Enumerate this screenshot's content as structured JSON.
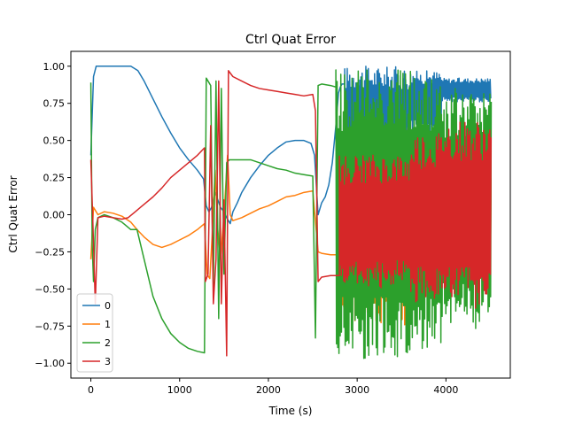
{
  "chart_data": {
    "type": "line",
    "title": "Ctrl Quat Error",
    "xlabel": "Time (s)",
    "ylabel": "Ctrl Quat Error",
    "xlim": [
      -225,
      4725
    ],
    "ylim": [
      -1.1,
      1.1
    ],
    "xticks": [
      0,
      1000,
      2000,
      3000,
      4000
    ],
    "xtick_labels": [
      "0",
      "1000",
      "2000",
      "3000",
      "4000"
    ],
    "yticks": [
      -1.0,
      -0.75,
      -0.5,
      -0.25,
      0.0,
      0.25,
      0.5,
      0.75,
      1.0
    ],
    "ytick_labels": [
      "−1.00",
      "−0.75",
      "−0.50",
      "−0.25",
      "0.00",
      "0.25",
      "0.50",
      "0.75",
      "1.00"
    ],
    "grid": false,
    "legend_position": "lower-left",
    "series": [
      {
        "name": "0",
        "color": "#1f77b4",
        "points": [
          [
            0,
            0.4
          ],
          [
            30,
            0.93
          ],
          [
            60,
            1.0
          ],
          [
            450,
            1.0
          ],
          [
            530,
            0.97
          ],
          [
            600,
            0.9
          ],
          [
            700,
            0.78
          ],
          [
            800,
            0.66
          ],
          [
            900,
            0.55
          ],
          [
            1000,
            0.45
          ],
          [
            1100,
            0.37
          ],
          [
            1200,
            0.3
          ],
          [
            1270,
            0.24
          ],
          [
            1300,
            0.06
          ],
          [
            1330,
            0.02
          ],
          [
            1360,
            0.05
          ],
          [
            1400,
            0.15
          ],
          [
            1430,
            0.1
          ],
          [
            1460,
            0.05
          ],
          [
            1500,
            0.02
          ],
          [
            1530,
            -0.02
          ],
          [
            1570,
            -0.06
          ],
          [
            1600,
            0.02
          ],
          [
            1650,
            0.08
          ],
          [
            1700,
            0.15
          ],
          [
            1800,
            0.25
          ],
          [
            1900,
            0.33
          ],
          [
            2000,
            0.4
          ],
          [
            2100,
            0.45
          ],
          [
            2200,
            0.49
          ],
          [
            2300,
            0.5
          ],
          [
            2400,
            0.5
          ],
          [
            2480,
            0.48
          ],
          [
            2520,
            0.4
          ],
          [
            2560,
            0.0
          ],
          [
            2600,
            0.08
          ],
          [
            2640,
            0.12
          ],
          [
            2680,
            0.2
          ],
          [
            2720,
            0.35
          ],
          [
            2760,
            0.6
          ],
          [
            2790,
            0.82
          ],
          [
            2810,
            0.86
          ],
          [
            2830,
            0.88
          ],
          [
            2860,
            0.88
          ]
        ],
        "osc": {
          "x0": 2860,
          "x1": 4510,
          "period": 14,
          "seg_breaks": [
            3600,
            3950,
            4510
          ],
          "seg_top": [
            1.0,
            0.97,
            0.92
          ],
          "seg_bot": [
            0.28,
            0.55,
            0.76
          ]
        }
      },
      {
        "name": "1",
        "color": "#ff7f0e",
        "points": [
          [
            0,
            -0.3
          ],
          [
            30,
            0.05
          ],
          [
            80,
            0.0
          ],
          [
            150,
            0.02
          ],
          [
            250,
            0.01
          ],
          [
            350,
            -0.01
          ],
          [
            450,
            -0.05
          ],
          [
            520,
            -0.1
          ],
          [
            600,
            -0.15
          ],
          [
            700,
            -0.2
          ],
          [
            800,
            -0.22
          ],
          [
            900,
            -0.2
          ],
          [
            1000,
            -0.17
          ],
          [
            1100,
            -0.14
          ],
          [
            1200,
            -0.1
          ],
          [
            1280,
            -0.06
          ],
          [
            1310,
            -0.4
          ],
          [
            1340,
            -0.43
          ],
          [
            1370,
            -0.1
          ],
          [
            1400,
            0.3
          ],
          [
            1430,
            -0.1
          ],
          [
            1460,
            -0.3
          ],
          [
            1500,
            0.0
          ],
          [
            1540,
            0.4
          ],
          [
            1570,
            0.0
          ],
          [
            1600,
            -0.04
          ],
          [
            1700,
            -0.02
          ],
          [
            1800,
            0.01
          ],
          [
            1900,
            0.04
          ],
          [
            2000,
            0.06
          ],
          [
            2100,
            0.09
          ],
          [
            2200,
            0.12
          ],
          [
            2300,
            0.13
          ],
          [
            2400,
            0.15
          ],
          [
            2500,
            0.16
          ],
          [
            2560,
            -0.25
          ],
          [
            2600,
            -0.26
          ],
          [
            2700,
            -0.27
          ],
          [
            2800,
            -0.27
          ]
        ],
        "osc": {
          "x0": 2800,
          "x1": 4510,
          "period": 14,
          "seg_breaks": [
            3600,
            3950,
            4510
          ],
          "seg_top": [
            0.6,
            0.5,
            0.35
          ],
          "seg_bot": [
            -0.75,
            -0.45,
            -0.4
          ]
        }
      },
      {
        "name": "2",
        "color": "#2ca02c",
        "points": [
          [
            0,
            0.89
          ],
          [
            15,
            -0.2
          ],
          [
            30,
            -0.45
          ],
          [
            50,
            -0.1
          ],
          [
            80,
            -0.02
          ],
          [
            150,
            0.0
          ],
          [
            250,
            -0.02
          ],
          [
            350,
            -0.05
          ],
          [
            450,
            -0.1
          ],
          [
            520,
            -0.1
          ],
          [
            600,
            -0.3
          ],
          [
            700,
            -0.55
          ],
          [
            800,
            -0.7
          ],
          [
            900,
            -0.8
          ],
          [
            1000,
            -0.86
          ],
          [
            1100,
            -0.9
          ],
          [
            1200,
            -0.92
          ],
          [
            1280,
            -0.93
          ],
          [
            1300,
            0.92
          ],
          [
            1350,
            0.87
          ],
          [
            1380,
            -0.5
          ],
          [
            1410,
            0.9
          ],
          [
            1440,
            -0.7
          ],
          [
            1470,
            0.85
          ],
          [
            1500,
            -0.4
          ],
          [
            1530,
            0.35
          ],
          [
            1560,
            0.37
          ],
          [
            1700,
            0.37
          ],
          [
            1800,
            0.37
          ],
          [
            1900,
            0.35
          ],
          [
            2000,
            0.33
          ],
          [
            2100,
            0.31
          ],
          [
            2200,
            0.3
          ],
          [
            2300,
            0.28
          ],
          [
            2400,
            0.27
          ],
          [
            2500,
            0.26
          ],
          [
            2530,
            -0.83
          ],
          [
            2560,
            0.87
          ],
          [
            2600,
            0.88
          ],
          [
            2700,
            0.87
          ],
          [
            2760,
            0.86
          ]
        ],
        "osc": {
          "x0": 2760,
          "x1": 4510,
          "period": 14,
          "seg_breaks": [
            3600,
            3950,
            4510
          ],
          "seg_top": [
            1.0,
            0.95,
            0.85
          ],
          "seg_bot": [
            -0.97,
            -0.9,
            -0.77
          ]
        }
      },
      {
        "name": "3",
        "color": "#d62728",
        "points": [
          [
            0,
            0.37
          ],
          [
            20,
            0.0
          ],
          [
            50,
            -0.6
          ],
          [
            80,
            -0.02
          ],
          [
            150,
            -0.01
          ],
          [
            250,
            -0.02
          ],
          [
            350,
            -0.03
          ],
          [
            420,
            -0.02
          ],
          [
            500,
            0.02
          ],
          [
            560,
            0.05
          ],
          [
            620,
            0.08
          ],
          [
            700,
            0.12
          ],
          [
            800,
            0.18
          ],
          [
            900,
            0.25
          ],
          [
            1000,
            0.3
          ],
          [
            1100,
            0.35
          ],
          [
            1200,
            0.4
          ],
          [
            1280,
            0.45
          ],
          [
            1290,
            -0.45
          ],
          [
            1320,
            -0.4
          ],
          [
            1350,
            0.6
          ],
          [
            1380,
            -0.6
          ],
          [
            1410,
            -0.3
          ],
          [
            1440,
            0.9
          ],
          [
            1470,
            -0.6
          ],
          [
            1500,
            0.1
          ],
          [
            1530,
            -0.95
          ],
          [
            1550,
            0.97
          ],
          [
            1600,
            0.93
          ],
          [
            1700,
            0.9
          ],
          [
            1800,
            0.87
          ],
          [
            1900,
            0.85
          ],
          [
            2000,
            0.84
          ],
          [
            2100,
            0.83
          ],
          [
            2200,
            0.82
          ],
          [
            2300,
            0.81
          ],
          [
            2400,
            0.8
          ],
          [
            2500,
            0.81
          ],
          [
            2530,
            0.7
          ],
          [
            2560,
            -0.45
          ],
          [
            2600,
            -0.42
          ],
          [
            2700,
            -0.41
          ],
          [
            2800,
            -0.41
          ]
        ],
        "osc": {
          "x0": 2800,
          "x1": 4510,
          "period": 14,
          "seg_breaks": [
            3600,
            3950,
            4510
          ],
          "seg_top": [
            0.4,
            0.55,
            0.63
          ],
          "seg_bot": [
            -0.5,
            -0.6,
            -0.63
          ]
        }
      }
    ]
  }
}
